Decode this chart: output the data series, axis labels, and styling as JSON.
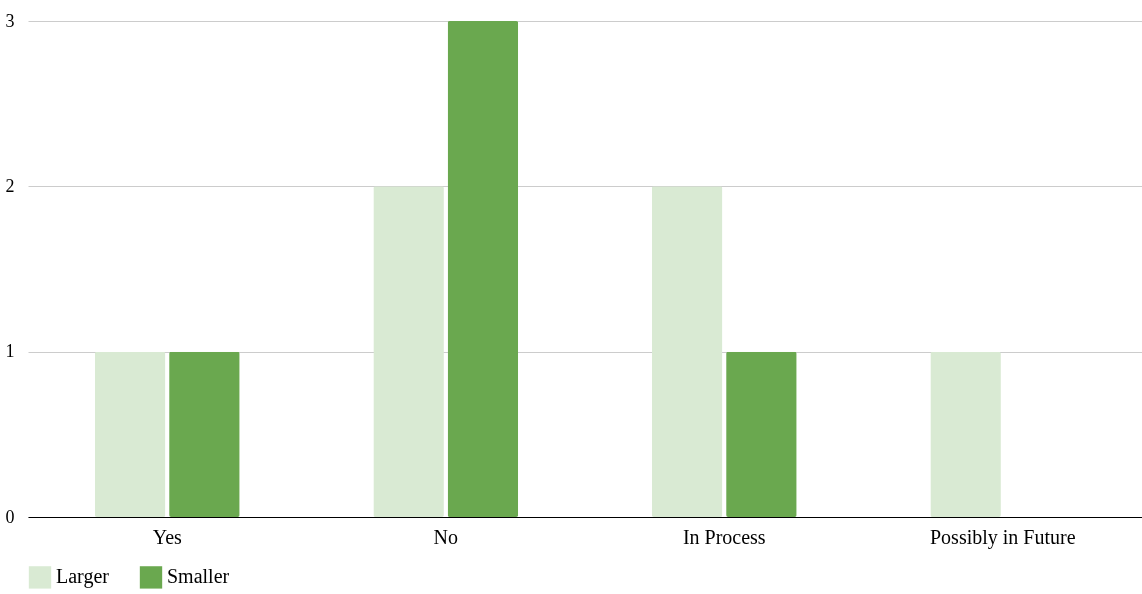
{
  "chart_data": {
    "type": "bar",
    "categories": [
      "Yes",
      "No",
      "In Process",
      "Possibly  in Future"
    ],
    "series": [
      {
        "name": "Larger",
        "color": "#d9ead3",
        "values": [
          1,
          2,
          2,
          1
        ]
      },
      {
        "name": "Smaller",
        "color": "#6aa84f",
        "values": [
          1,
          3,
          1,
          0
        ]
      }
    ],
    "ylim": [
      0,
      3
    ],
    "yticks": [
      0,
      1,
      2,
      3
    ],
    "grid": "y",
    "legend": "bottom"
  }
}
